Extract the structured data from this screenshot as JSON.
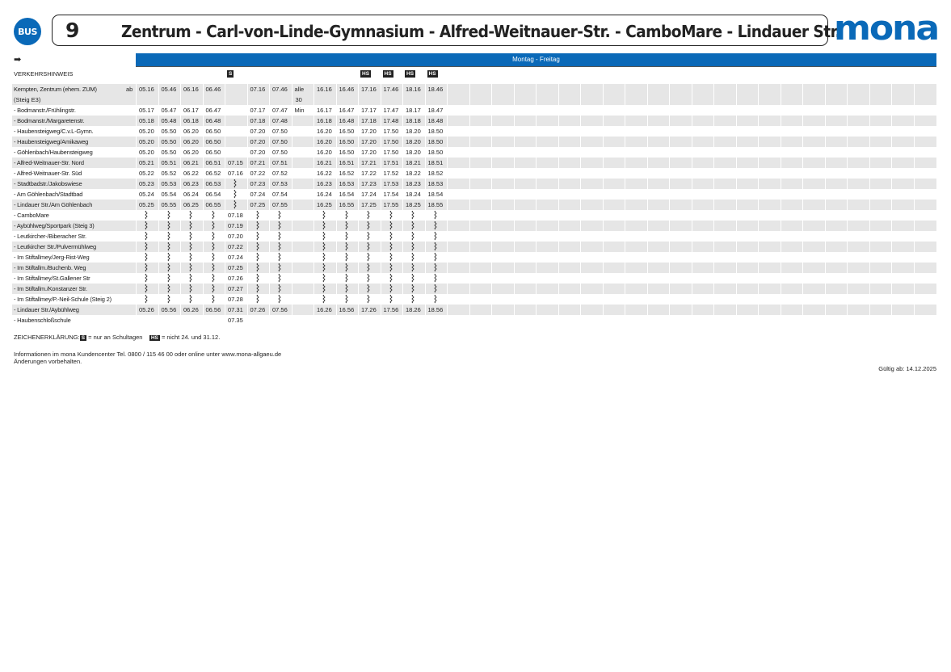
{
  "header": {
    "bus_badge": "BUS",
    "line_number": "9",
    "route": "Zentrum - Carl-von-Linde-Gymnasium - Alfred-Weitnauer-Str. - CamboMare - Lindauer Str.",
    "logo": "mona",
    "direction_icon": "arrow-right-icon",
    "brand_color": "#0a69b8"
  },
  "day_band": "Montag - Freitag",
  "hinweis_label": "VERKEHRSHINWEIS",
  "trip_tags": [
    "",
    "",
    "",
    "",
    "S",
    "",
    "",
    "",
    "",
    "",
    "HS",
    "HS",
    "HS",
    "HS"
  ],
  "total_columns": 36,
  "stops": [
    {
      "name": "Kempten, Zentrum (ehem. ZUM)",
      "name2": "(Steig E3)",
      "ab": "ab",
      "times": [
        "05.16",
        "05.46",
        "06.16",
        "06.46",
        "",
        "07.16",
        "07.46",
        "alle",
        "16.16",
        "16.46",
        "17.16",
        "17.46",
        "18.16",
        "18.46"
      ],
      "times2": [
        "",
        "",
        "",
        "",
        "",
        "",
        "",
        "30",
        "",
        "",
        "",
        "",
        "",
        ""
      ]
    },
    {
      "name": "- Bodmanstr./Frühlingstr.",
      "times": [
        "05.17",
        "05.47",
        "06.17",
        "06.47",
        "",
        "07.17",
        "07.47",
        "Min",
        "16.17",
        "16.47",
        "17.17",
        "17.47",
        "18.17",
        "18.47"
      ]
    },
    {
      "name": "- Bodmanstr./Margaretenstr.",
      "times": [
        "05.18",
        "05.48",
        "06.18",
        "06.48",
        "",
        "07.18",
        "07.48",
        "",
        "16.18",
        "16.48",
        "17.18",
        "17.48",
        "18.18",
        "18.48"
      ]
    },
    {
      "name": "- Haubensteigweg/C.v.L-Gymn.",
      "times": [
        "05.20",
        "05.50",
        "06.20",
        "06.50",
        "",
        "07.20",
        "07.50",
        "",
        "16.20",
        "16.50",
        "17.20",
        "17.50",
        "18.20",
        "18.50"
      ]
    },
    {
      "name": "- Haubensteigweg/Amikaweg",
      "times": [
        "05.20",
        "05.50",
        "06.20",
        "06.50",
        "",
        "07.20",
        "07.50",
        "",
        "16.20",
        "16.50",
        "17.20",
        "17.50",
        "18.20",
        "18.50"
      ]
    },
    {
      "name": "- Göhlenbach/Haubensteigweg",
      "times": [
        "05.20",
        "05.50",
        "06.20",
        "06.50",
        "",
        "07.20",
        "07.50",
        "",
        "16.20",
        "16.50",
        "17.20",
        "17.50",
        "18.20",
        "18.50"
      ]
    },
    {
      "name": "- Alfred-Weitnauer-Str. Nord",
      "times": [
        "05.21",
        "05.51",
        "06.21",
        "06.51",
        "07.15",
        "07.21",
        "07.51",
        "",
        "16.21",
        "16.51",
        "17.21",
        "17.51",
        "18.21",
        "18.51"
      ]
    },
    {
      "name": "- Alfred-Weitnauer-Str. Süd",
      "times": [
        "05.22",
        "05.52",
        "06.22",
        "06.52",
        "07.16",
        "07.22",
        "07.52",
        "",
        "16.22",
        "16.52",
        "17.22",
        "17.52",
        "18.22",
        "18.52"
      ]
    },
    {
      "name": "- Stadtbadstr./Jakobswiese",
      "times": [
        "05.23",
        "05.53",
        "06.23",
        "06.53",
        "~",
        "07.23",
        "07.53",
        "",
        "16.23",
        "16.53",
        "17.23",
        "17.53",
        "18.23",
        "18.53"
      ]
    },
    {
      "name": "- Am Göhlenbach/Stadtbad",
      "times": [
        "05.24",
        "05.54",
        "06.24",
        "06.54",
        "~",
        "07.24",
        "07.54",
        "",
        "16.24",
        "16.54",
        "17.24",
        "17.54",
        "18.24",
        "18.54"
      ]
    },
    {
      "name": "- Lindauer Str./Am Göhlenbach",
      "times": [
        "05.25",
        "05.55",
        "06.25",
        "06.55",
        "~",
        "07.25",
        "07.55",
        "",
        "16.25",
        "16.55",
        "17.25",
        "17.55",
        "18.25",
        "18.55"
      ]
    },
    {
      "name": "- CamboMare",
      "times": [
        "~",
        "~",
        "~",
        "~",
        "07.18",
        "~",
        "~",
        "",
        "~",
        "~",
        "~",
        "~",
        "~",
        "~"
      ]
    },
    {
      "name": "- Aybühlweg/Sportpark (Steig 3)",
      "times": [
        "~",
        "~",
        "~",
        "~",
        "07.19",
        "~",
        "~",
        "",
        "~",
        "~",
        "~",
        "~",
        "~",
        "~"
      ]
    },
    {
      "name": "- Leutkircher-/Biberacher Str.",
      "times": [
        "~",
        "~",
        "~",
        "~",
        "07.20",
        "~",
        "~",
        "",
        "~",
        "~",
        "~",
        "~",
        "~",
        "~"
      ]
    },
    {
      "name": "- Leutkircher Str./Pulvermühlweg",
      "times": [
        "~",
        "~",
        "~",
        "~",
        "07.22",
        "~",
        "~",
        "",
        "~",
        "~",
        "~",
        "~",
        "~",
        "~"
      ]
    },
    {
      "name": "- Im Stiftallmey/Jerg-Rist-Weg",
      "times": [
        "~",
        "~",
        "~",
        "~",
        "07.24",
        "~",
        "~",
        "",
        "~",
        "~",
        "~",
        "~",
        "~",
        "~"
      ]
    },
    {
      "name": "- Im Stiftallm./Buchenb. Weg",
      "times": [
        "~",
        "~",
        "~",
        "~",
        "07.25",
        "~",
        "~",
        "",
        "~",
        "~",
        "~",
        "~",
        "~",
        "~"
      ]
    },
    {
      "name": "- Im Stiftallmey/St.Gallener Str",
      "times": [
        "~",
        "~",
        "~",
        "~",
        "07.26",
        "~",
        "~",
        "",
        "~",
        "~",
        "~",
        "~",
        "~",
        "~"
      ]
    },
    {
      "name": "- Im Stiftallm./Konstanzer Str.",
      "times": [
        "~",
        "~",
        "~",
        "~",
        "07.27",
        "~",
        "~",
        "",
        "~",
        "~",
        "~",
        "~",
        "~",
        "~"
      ]
    },
    {
      "name": "- Im Stiftallmey/P.-Neil-Schule (Steig 2)",
      "times": [
        "~",
        "~",
        "~",
        "~",
        "07.28",
        "~",
        "~",
        "",
        "~",
        "~",
        "~",
        "~",
        "~",
        "~"
      ]
    },
    {
      "name": "- Lindauer Str./Aybühlweg",
      "times": [
        "05.26",
        "05.56",
        "06.26",
        "06.56",
        "07.31",
        "07.26",
        "07.56",
        "",
        "16.26",
        "16.56",
        "17.26",
        "17.56",
        "18.26",
        "18.56"
      ]
    },
    {
      "name": "- Haubenschloßschule",
      "times": [
        "",
        "",
        "",
        "",
        "07.35",
        "",
        "",
        "",
        "",
        "",
        "",
        "",
        "",
        ""
      ]
    }
  ],
  "legend": {
    "label": "ZEICHENERKLÄRUNG:",
    "s_tag": "S",
    "s_text": "= nur an Schultagen",
    "hs_tag": "HS",
    "hs_text": "= nicht 24. und 31.12."
  },
  "info_line1": "Informationen im mona Kundencenter Tel. 0800 / 115 46 00 oder online unter www.mona-allgaeu.de",
  "info_line2": "Änderungen vorbehalten.",
  "valid_from": "Gültig ab: 14.12.2025"
}
